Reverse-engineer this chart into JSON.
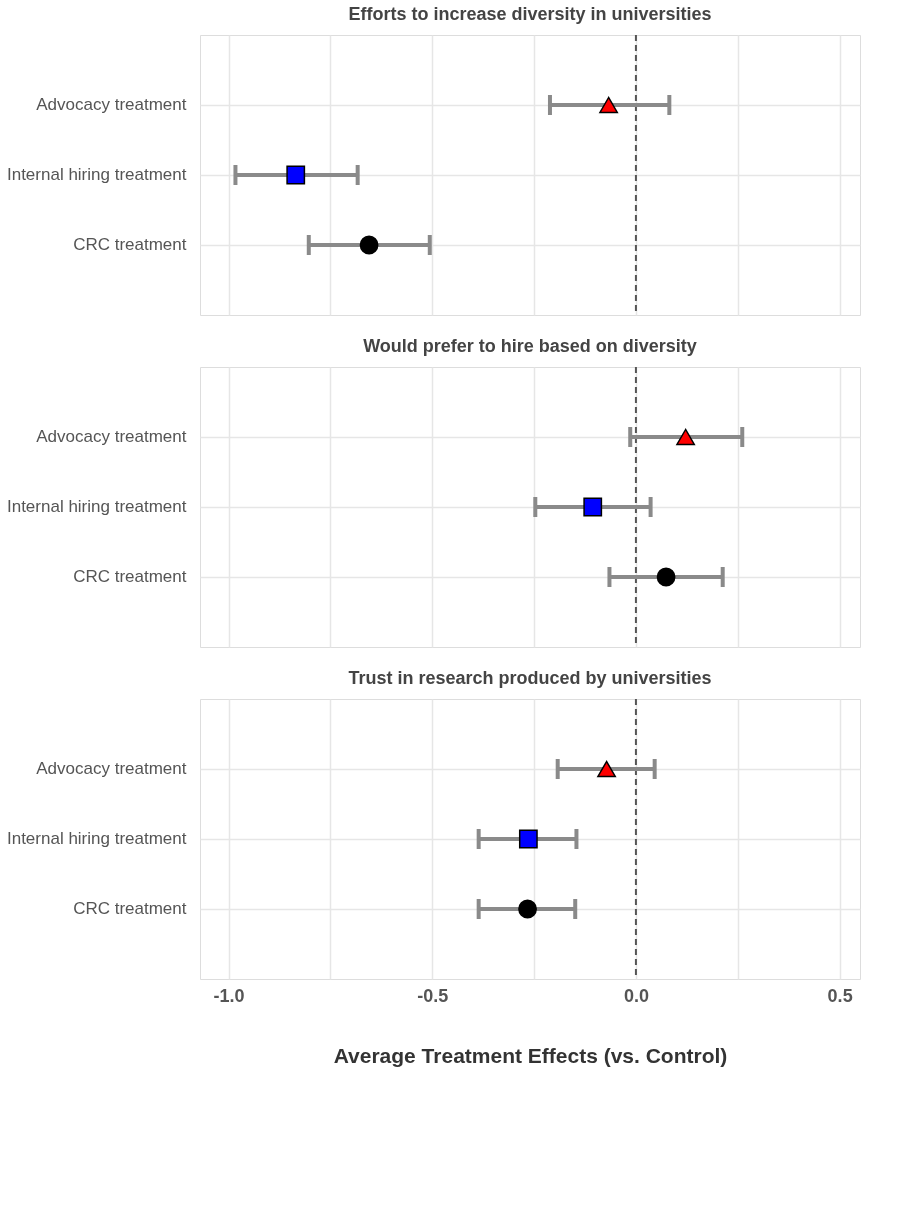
{
  "chart_data": [
    {
      "type": "scatter",
      "orientation": "horizontal",
      "title": "Efforts to increase diversity in universities",
      "categories": [
        "Advocacy treatment",
        "Internal hiring treatment",
        "CRC treatment"
      ],
      "xlim": [
        -1.07,
        0.55
      ],
      "xticks": [
        {
          "value": -1,
          "label": null
        },
        {
          "value": -0.75,
          "label": null
        },
        {
          "value": -0.5,
          "label": null
        },
        {
          "value": -0.25,
          "label": null
        },
        {
          "value": 0,
          "label": null
        },
        {
          "value": 0.25,
          "label": null
        },
        {
          "value": 0.5,
          "label": null
        }
      ],
      "tick_labels": "y",
      "grid": true,
      "legend": false,
      "series": [
        {
          "color": "#ff0000",
          "marker": "triangle",
          "values": [
            -0.067,
            null,
            null
          ],
          "errors": [
            [
              -0.211,
              0.082
            ],
            null,
            null
          ]
        },
        {
          "color": "#0000ff",
          "marker": "square",
          "values": [
            null,
            -0.835,
            null
          ],
          "errors": [
            null,
            [
              -0.983,
              -0.683
            ],
            null
          ]
        },
        {
          "color": "#000000",
          "marker": "circle",
          "values": [
            null,
            null,
            -0.655
          ],
          "errors": [
            null,
            null,
            [
              -0.803,
              -0.506
            ]
          ]
        }
      ],
      "ref_lines": [
        {
          "axis": "x",
          "value": 0,
          "line_style": "dashed",
          "color": "#555555"
        }
      ]
    },
    {
      "type": "scatter",
      "orientation": "horizontal",
      "title": "Would prefer to hire based on diversity",
      "categories": [
        "Advocacy treatment",
        "Internal hiring treatment",
        "CRC treatment"
      ],
      "xlim": [
        -1.07,
        0.55
      ],
      "xticks": [
        {
          "value": -1,
          "label": null
        },
        {
          "value": -0.75,
          "label": null
        },
        {
          "value": -0.5,
          "label": null
        },
        {
          "value": -0.25,
          "label": null
        },
        {
          "value": 0,
          "label": null
        },
        {
          "value": 0.25,
          "label": null
        },
        {
          "value": 0.5,
          "label": null
        }
      ],
      "tick_labels": "y",
      "grid": true,
      "legend": false,
      "series": [
        {
          "color": "#ff0000",
          "marker": "triangle",
          "values": [
            0.122,
            null,
            null
          ],
          "errors": [
            [
              -0.014,
              0.261
            ],
            null,
            null
          ]
        },
        {
          "color": "#0000ff",
          "marker": "square",
          "values": [
            null,
            -0.106,
            null
          ],
          "errors": [
            null,
            [
              -0.247,
              0.036
            ],
            null
          ]
        },
        {
          "color": "#000000",
          "marker": "circle",
          "values": [
            null,
            null,
            0.074
          ],
          "errors": [
            null,
            null,
            [
              -0.065,
              0.213
            ]
          ]
        }
      ],
      "ref_lines": [
        {
          "axis": "x",
          "value": 0,
          "line_style": "dashed",
          "color": "#555555"
        }
      ]
    },
    {
      "type": "scatter",
      "orientation": "horizontal",
      "title": "Trust in research produced by universities",
      "xlabel": "Average Treatment Effects (vs. Control)",
      "categories": [
        "Advocacy treatment",
        "Internal hiring treatment",
        "CRC treatment"
      ],
      "xlim": [
        -1.07,
        0.55
      ],
      "xticks": [
        {
          "value": -1,
          "label": "-1.0"
        },
        {
          "value": -0.75,
          "label": null
        },
        -0.5,
        {
          "value": -0.25,
          "label": null
        },
        {
          "value": 0,
          "label": "0.0"
        },
        {
          "value": 0.25,
          "label": null
        },
        0.5
      ],
      "grid": true,
      "legend": false,
      "series": [
        {
          "color": "#ff0000",
          "marker": "triangle",
          "values": [
            -0.072,
            null,
            null
          ],
          "errors": [
            [
              -0.192,
              0.046
            ],
            null,
            null
          ]
        },
        {
          "color": "#0000ff",
          "marker": "square",
          "values": [
            null,
            -0.264,
            null
          ],
          "errors": [
            null,
            [
              -0.386,
              -0.146
            ],
            null
          ]
        },
        {
          "color": "#000000",
          "marker": "circle",
          "values": [
            null,
            null,
            -0.266
          ],
          "errors": [
            null,
            null,
            [
              -0.386,
              -0.149
            ]
          ]
        }
      ],
      "ref_lines": [
        {
          "axis": "x",
          "value": 0,
          "line_style": "dashed",
          "color": "#555555"
        }
      ]
    }
  ]
}
